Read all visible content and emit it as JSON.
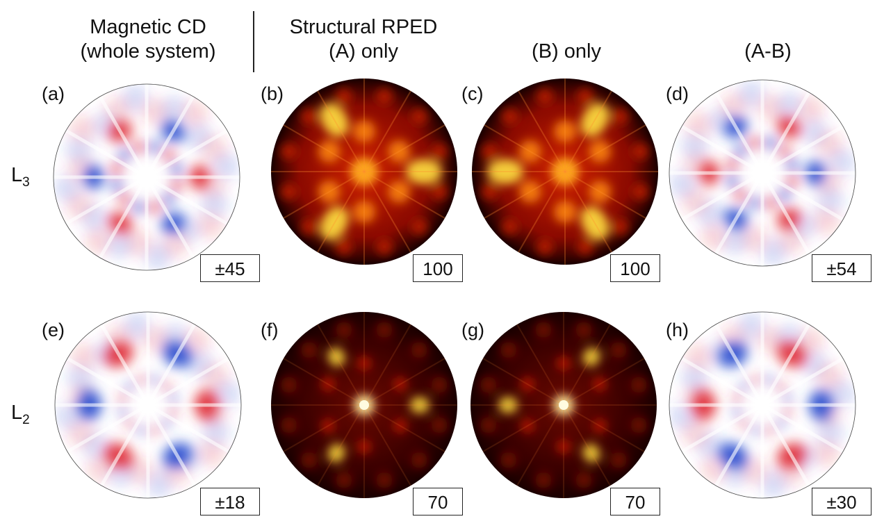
{
  "headers": {
    "col1_line1": "Magnetic CD",
    "col1_line2": "(whole system)",
    "col2_line1": "Structural RPED",
    "col2_line2": "(A) only",
    "col3": "(B) only",
    "col4": "(A-B)"
  },
  "rows": {
    "row1": {
      "label": "L",
      "sub": "3"
    },
    "row2": {
      "label": "L",
      "sub": "2"
    }
  },
  "panels": [
    {
      "label": "(a)",
      "scale": "±45",
      "kind": "cd"
    },
    {
      "label": "(b)",
      "scale": "100",
      "kind": "rped"
    },
    {
      "label": "(c)",
      "scale": "100",
      "kind": "rped"
    },
    {
      "label": "(d)",
      "scale": "±54",
      "kind": "cd"
    },
    {
      "label": "(e)",
      "scale": "±18",
      "kind": "cd"
    },
    {
      "label": "(f)",
      "scale": "70",
      "kind": "rped"
    },
    {
      "label": "(g)",
      "scale": "70",
      "kind": "rped"
    },
    {
      "label": "(h)",
      "scale": "±30",
      "kind": "cd"
    }
  ],
  "colors": {
    "cd_red": "#e0303a",
    "cd_blue": "#2a4fd0",
    "rped_dark": "#1a0000",
    "rped_mid": "#b01000",
    "rped_hot": "#ffe040"
  }
}
